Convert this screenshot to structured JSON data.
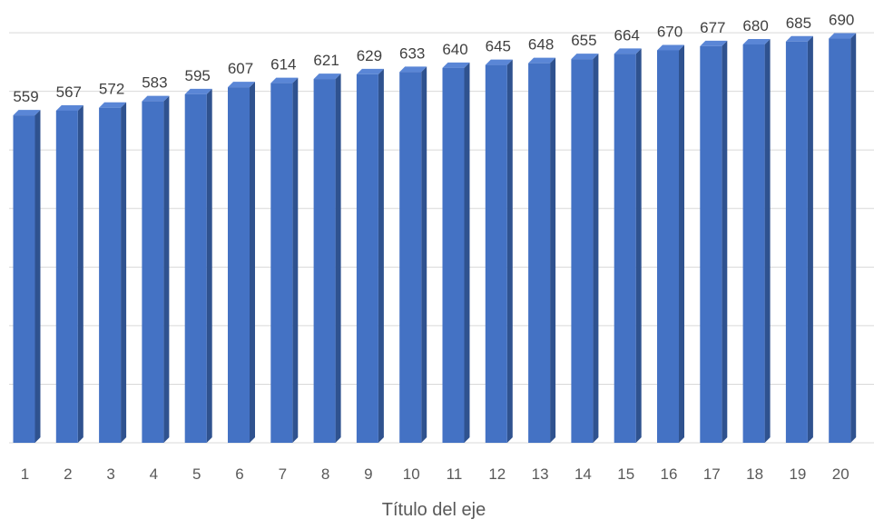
{
  "chart_data": {
    "type": "bar",
    "categories": [
      "1",
      "2",
      "3",
      "4",
      "5",
      "6",
      "7",
      "8",
      "9",
      "10",
      "11",
      "12",
      "13",
      "14",
      "15",
      "16",
      "17",
      "18",
      "19",
      "20"
    ],
    "values": [
      559,
      567,
      572,
      583,
      595,
      607,
      614,
      621,
      629,
      633,
      640,
      645,
      648,
      655,
      664,
      670,
      677,
      680,
      685,
      690
    ],
    "title": "",
    "xlabel": "Título del eje",
    "ylabel": "",
    "ylim": [
      0,
      700
    ],
    "grid": true,
    "legend": "none",
    "colors": {
      "front": "#4472C4",
      "side": "#2F528F",
      "top": "#5A86D6"
    }
  }
}
